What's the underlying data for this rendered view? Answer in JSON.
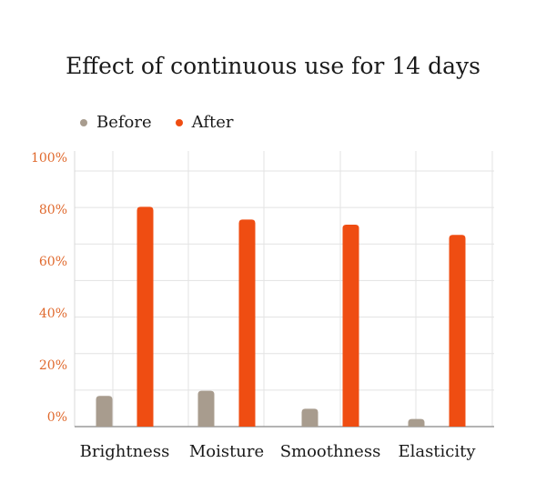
{
  "chart_data": {
    "type": "bar",
    "title": "Effect of continuous use for 14 days",
    "categories": [
      "Brightness",
      "Moisture",
      "Smoothness",
      "Elasticity"
    ],
    "series": [
      {
        "name": "Before",
        "color": "#a89c8e",
        "values": [
          12,
          14,
          7,
          3
        ]
      },
      {
        "name": "After",
        "color": "#ef4d12",
        "values": [
          86,
          81,
          79,
          75
        ]
      }
    ],
    "y_tick_labels": [
      "100%",
      "80%",
      "60%",
      "40%",
      "20%",
      "0%"
    ],
    "ylim": [
      0,
      100
    ],
    "grid": true,
    "legend_position": "top-left",
    "tick_label_color": "#e0692d"
  }
}
